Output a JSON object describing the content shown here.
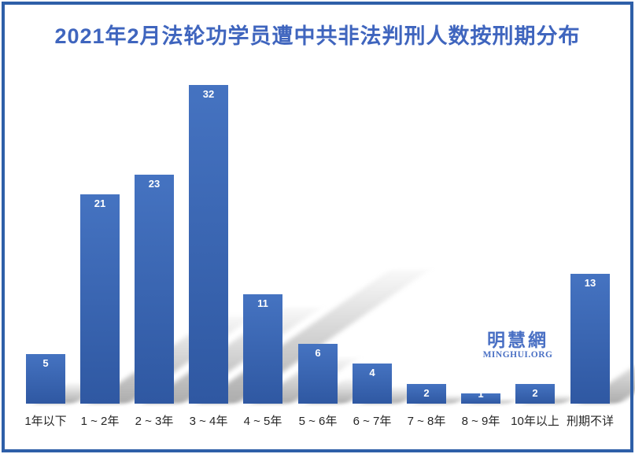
{
  "title": "2021年2月法轮功学员遭中共非法判刑人数按刑期分布",
  "watermark": {
    "cjk": "明慧網",
    "latin": "MINGHUI.ORG"
  },
  "colors": {
    "frame": "#2E5FA8",
    "title": "#3F65BE",
    "bar_top": "#4573C1",
    "bar_bottom": "#2F58A2",
    "bar_value_label": "#FFFFFF",
    "axis_text": "#262626",
    "watermark": "#4A70C4"
  },
  "chart_data": {
    "type": "bar",
    "title": "2021年2月法轮功学员遭中共非法判刑人数按刑期分布",
    "categories": [
      "1年以下",
      "1 ~ 2年",
      "2 ~ 3年",
      "3 ~ 4年",
      "4 ~ 5年",
      "5 ~ 6年",
      "6 ~ 7年",
      "7 ~ 8年",
      "8 ~ 9年",
      "10年以上",
      "刑期不详"
    ],
    "values": [
      5,
      21,
      23,
      32,
      11,
      6,
      4,
      2,
      1,
      2,
      13
    ],
    "xlabel": "",
    "ylabel": "",
    "ylim": [
      0,
      35
    ],
    "grid": false,
    "legend": false,
    "data_labels": "inside-end",
    "bar_shadow": "perspective-upper-right"
  }
}
